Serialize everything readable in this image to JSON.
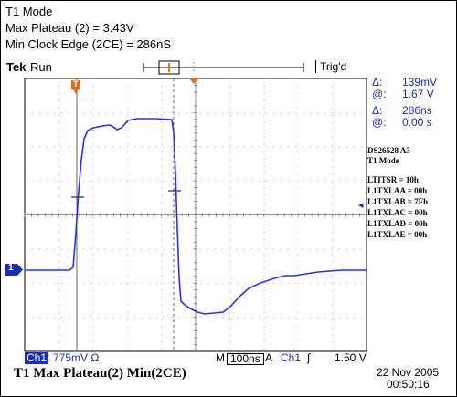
{
  "header": {
    "line1": "T1 Mode",
    "line2": "Max Plateau (2) = 3.43V",
    "line3": "Min Clock Edge (2CE) = 286nS"
  },
  "topbar": {
    "brand": "Tek",
    "run_state": "Run",
    "trigger_state": "Trig'd"
  },
  "measurements": {
    "delta_v_symbol": "Δ:",
    "delta_v": "139mV",
    "at_v_symbol": "@:",
    "at_v": "1.67 V",
    "delta_t_symbol": "Δ:",
    "delta_t": "286ns",
    "at_t_symbol": "@:",
    "at_t": "0.00 s"
  },
  "side_info": {
    "device": "DS26528  A3",
    "mode": "T1 Mode",
    "registers": [
      "LTITSR = 10h",
      "L1TXLAA = 00h",
      "L1TXLAB = 7Fh",
      "L1TXLAC = 00h",
      "L1TXLAD = 00h",
      "L1TXLAE = 00h"
    ]
  },
  "markers": {
    "trigger_marker": "T",
    "channel_marker": "1",
    "level_arrow": "◂"
  },
  "statusbar": {
    "channel": "Ch1",
    "scale": "775mV Ω",
    "timebase_label": "M",
    "timebase": "100ns",
    "trigger_mode": "A",
    "trigger_source": "Ch1",
    "trigger_slope": "∫",
    "trigger_level": "1.50 V"
  },
  "caption": "T1 Max Plateau(2)  Min(2CE)",
  "timestamp": {
    "date": "22 Nov 2005",
    "time": "00:50:16"
  },
  "colors": {
    "trace": "#2a34d8",
    "marker": "#e07020",
    "text_blue": "#1a2fa8"
  }
}
